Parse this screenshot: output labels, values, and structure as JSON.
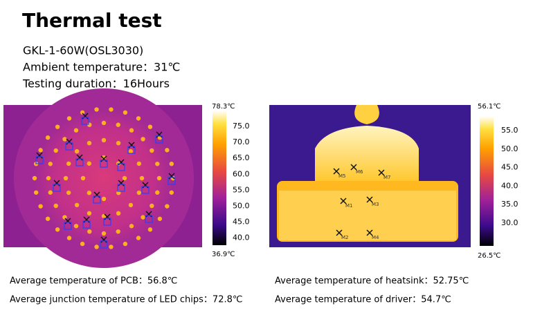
{
  "header": {
    "title": "Thermal test",
    "lines": [
      "GKL-1-60W(OSL3030)",
      "Ambient temperature：31℃",
      "Testing duration：16Hours"
    ]
  },
  "images": [
    {
      "scale_max": "78.3℃",
      "scale_min": "36.9℃",
      "ticks": [
        "75.0",
        "70.0",
        "65.0",
        "60.0",
        "55.0",
        "50.0",
        "45.0",
        "40.0"
      ],
      "captions": [
        "Average temperature of PCB：56.8℃",
        "Average junction temperature of LED chips：72.8℃"
      ]
    },
    {
      "scale_max": "56.1℃",
      "scale_min": "26.5℃",
      "ticks": [
        "55.0",
        "50.0",
        "45.0",
        "40.0",
        "35.0",
        "30.0"
      ],
      "markers": [
        "M5",
        "M6",
        "M7",
        "M1",
        "M3",
        "M2",
        "M4"
      ],
      "captions": [
        "Average temperature of heatsink：52.75℃",
        "Average temperature of driver：54.7℃"
      ]
    }
  ]
}
